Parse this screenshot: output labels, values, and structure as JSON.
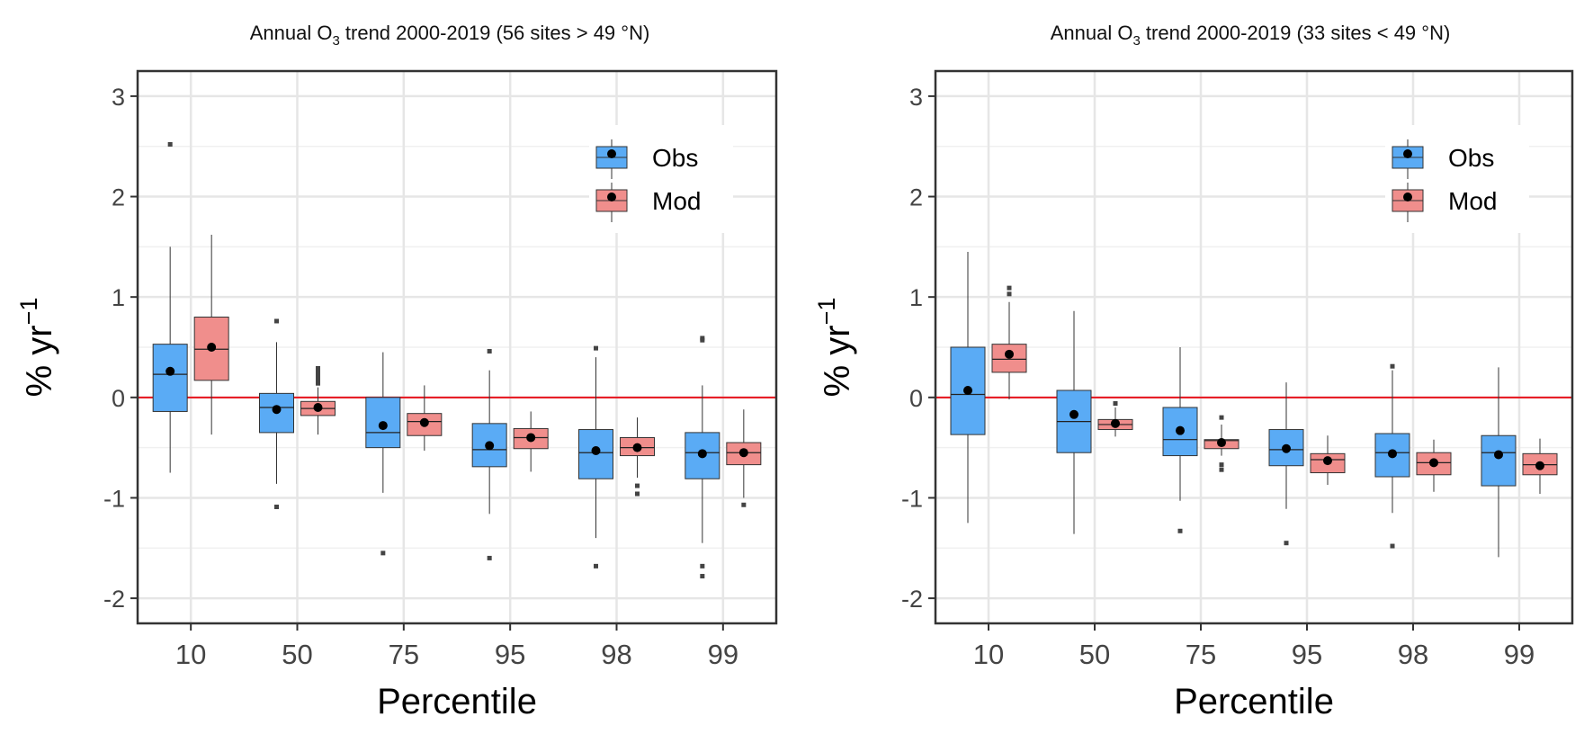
{
  "chart_data": [
    {
      "type": "boxplot",
      "title_parts": [
        "Annual O",
        "3",
        " trend 2000-2019 (56 sites > 49 °N)"
      ],
      "xlabel": "Percentile",
      "ylabel_parts": [
        "% yr",
        "−1"
      ],
      "categories": [
        "10",
        "50",
        "75",
        "95",
        "98",
        "99"
      ],
      "ylim": [
        -2.25,
        3.25
      ],
      "yticks": [
        3,
        2,
        1,
        0,
        -1,
        -2
      ],
      "ytick_labels": [
        "3",
        "2",
        "1",
        "0",
        "-1",
        "-2"
      ],
      "reference_line": 0,
      "legend": {
        "position": "top-right",
        "entries": [
          "Obs",
          "Mod"
        ]
      },
      "colors": {
        "Obs": "#5aabf5",
        "Mod": "#f08e8c",
        "reference": "#e8141c"
      },
      "series": [
        {
          "name": "Obs",
          "boxes": [
            {
              "q1": -0.14,
              "median": 0.23,
              "q3": 0.53,
              "wlow": -0.75,
              "whigh": 1.5,
              "mean": 0.26,
              "outliers": [
                2.52
              ]
            },
            {
              "q1": -0.35,
              "median": -0.1,
              "q3": 0.04,
              "wlow": -0.86,
              "whigh": 0.55,
              "mean": -0.12,
              "outliers": [
                0.76,
                -1.09
              ]
            },
            {
              "q1": -0.5,
              "median": -0.35,
              "q3": 0.0,
              "wlow": -0.95,
              "whigh": 0.45,
              "mean": -0.28,
              "outliers": [
                -1.55
              ]
            },
            {
              "q1": -0.69,
              "median": -0.52,
              "q3": -0.26,
              "wlow": -1.16,
              "whigh": 0.27,
              "mean": -0.48,
              "outliers": [
                0.46,
                -1.6
              ]
            },
            {
              "q1": -0.81,
              "median": -0.55,
              "q3": -0.32,
              "wlow": -1.4,
              "whigh": 0.4,
              "mean": -0.53,
              "outliers": [
                0.49,
                -1.68
              ]
            },
            {
              "q1": -0.81,
              "median": -0.55,
              "q3": -0.35,
              "wlow": -1.45,
              "whigh": 0.12,
              "mean": -0.56,
              "outliers": [
                0.59,
                0.57,
                -1.68,
                -1.78
              ]
            }
          ]
        },
        {
          "name": "Mod",
          "boxes": [
            {
              "q1": 0.17,
              "median": 0.48,
              "q3": 0.8,
              "wlow": -0.37,
              "whigh": 1.62,
              "mean": 0.5,
              "outliers": []
            },
            {
              "q1": -0.18,
              "median": -0.11,
              "q3": -0.04,
              "wlow": -0.37,
              "whigh": 0.1,
              "mean": -0.1,
              "outliers": [
                0.29,
                0.26,
                0.23,
                0.2,
                0.17,
                0.14
              ]
            },
            {
              "q1": -0.38,
              "median": -0.24,
              "q3": -0.16,
              "wlow": -0.53,
              "whigh": 0.12,
              "mean": -0.25,
              "outliers": []
            },
            {
              "q1": -0.51,
              "median": -0.4,
              "q3": -0.31,
              "wlow": -0.74,
              "whigh": -0.14,
              "mean": -0.4,
              "outliers": []
            },
            {
              "q1": -0.58,
              "median": -0.5,
              "q3": -0.4,
              "wlow": -0.8,
              "whigh": -0.2,
              "mean": -0.5,
              "outliers": [
                -0.88,
                -0.96
              ]
            },
            {
              "q1": -0.67,
              "median": -0.55,
              "q3": -0.45,
              "wlow": -1.0,
              "whigh": -0.12,
              "mean": -0.55,
              "outliers": [
                -1.07
              ]
            }
          ]
        }
      ]
    },
    {
      "type": "boxplot",
      "title_parts": [
        "Annual O",
        "3",
        " trend 2000-2019 (33 sites < 49 °N)"
      ],
      "xlabel": "Percentile",
      "ylabel_parts": [
        "% yr",
        "−1"
      ],
      "categories": [
        "10",
        "50",
        "75",
        "95",
        "98",
        "99"
      ],
      "ylim": [
        -2.25,
        3.25
      ],
      "yticks": [
        3,
        2,
        1,
        0,
        -1,
        -2
      ],
      "ytick_labels": [
        "3",
        "2",
        "1",
        "0",
        "-1",
        "-2"
      ],
      "reference_line": 0,
      "legend": {
        "position": "top-right",
        "entries": [
          "Obs",
          "Mod"
        ]
      },
      "colors": {
        "Obs": "#5aabf5",
        "Mod": "#f08e8c",
        "reference": "#e8141c"
      },
      "series": [
        {
          "name": "Obs",
          "boxes": [
            {
              "q1": -0.37,
              "median": 0.03,
              "q3": 0.5,
              "wlow": -1.25,
              "whigh": 1.45,
              "mean": 0.07,
              "outliers": []
            },
            {
              "q1": -0.55,
              "median": -0.24,
              "q3": 0.07,
              "wlow": -1.36,
              "whigh": 0.86,
              "mean": -0.17,
              "outliers": []
            },
            {
              "q1": -0.58,
              "median": -0.42,
              "q3": -0.1,
              "wlow": -1.03,
              "whigh": 0.5,
              "mean": -0.33,
              "outliers": [
                -1.33
              ]
            },
            {
              "q1": -0.68,
              "median": -0.52,
              "q3": -0.32,
              "wlow": -1.11,
              "whigh": 0.15,
              "mean": -0.51,
              "outliers": [
                -1.45
              ]
            },
            {
              "q1": -0.79,
              "median": -0.55,
              "q3": -0.36,
              "wlow": -1.15,
              "whigh": 0.27,
              "mean": -0.56,
              "outliers": [
                0.31,
                -1.48
              ]
            },
            {
              "q1": -0.88,
              "median": -0.55,
              "q3": -0.38,
              "wlow": -1.59,
              "whigh": 0.3,
              "mean": -0.57,
              "outliers": []
            }
          ]
        },
        {
          "name": "Mod",
          "boxes": [
            {
              "q1": 0.25,
              "median": 0.38,
              "q3": 0.53,
              "wlow": -0.02,
              "whigh": 0.95,
              "mean": 0.43,
              "outliers": [
                1.09,
                1.03
              ]
            },
            {
              "q1": -0.32,
              "median": -0.27,
              "q3": -0.22,
              "wlow": -0.39,
              "whigh": -0.1,
              "mean": -0.26,
              "outliers": [
                -0.06
              ]
            },
            {
              "q1": -0.51,
              "median": -0.43,
              "q3": -0.42,
              "wlow": -0.58,
              "whigh": -0.27,
              "mean": -0.45,
              "outliers": [
                -0.2,
                -0.67,
                -0.72
              ]
            },
            {
              "q1": -0.75,
              "median": -0.62,
              "q3": -0.56,
              "wlow": -0.87,
              "whigh": -0.38,
              "mean": -0.63,
              "outliers": []
            },
            {
              "q1": -0.77,
              "median": -0.65,
              "q3": -0.55,
              "wlow": -0.94,
              "whigh": -0.42,
              "mean": -0.65,
              "outliers": []
            },
            {
              "q1": -0.77,
              "median": -0.67,
              "q3": -0.56,
              "wlow": -0.96,
              "whigh": -0.41,
              "mean": -0.68,
              "outliers": []
            }
          ]
        }
      ]
    }
  ]
}
